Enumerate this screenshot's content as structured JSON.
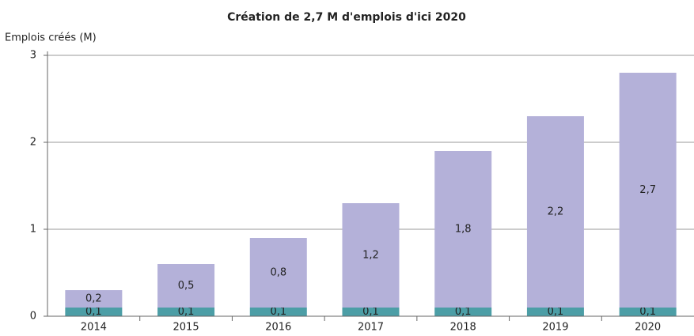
{
  "chart_data": {
    "type": "stacked_bar",
    "title": "Création de 2,7 M d'emplois d'ici 2020",
    "y_label": "Emplois créés (M)",
    "categories": [
      "2014",
      "2015",
      "2016",
      "2017",
      "2018",
      "2019",
      "2020"
    ],
    "series": [
      {
        "color": "#4c9ea6",
        "values": [
          0.1,
          0.1,
          0.1,
          0.1,
          0.1,
          0.1,
          0.1
        ],
        "value_labels": [
          "0,1",
          "0,1",
          "0,1",
          "0,1",
          "0,1",
          "0,1",
          "0,1"
        ]
      },
      {
        "color": "#b4b1d9",
        "values": [
          0.2,
          0.5,
          0.8,
          1.2,
          1.8,
          2.2,
          2.7
        ],
        "value_labels": [
          "0,2",
          "0,5",
          "0,8",
          "1,2",
          "1,8",
          "2,2",
          "2,7"
        ]
      }
    ],
    "ylim": [
      0,
      3
    ],
    "yticks": [
      0,
      1,
      2,
      3
    ],
    "grid": true
  }
}
